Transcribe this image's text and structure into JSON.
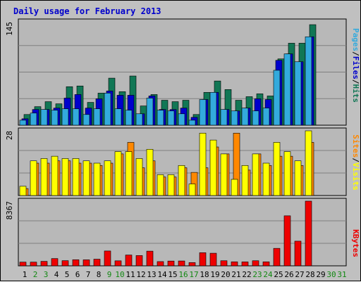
{
  "title": "Daily usage for February 2013",
  "colors": {
    "background": "#c0c0c0",
    "plot_bg": "#b8b8b8",
    "title": "#0000cc",
    "pages": "#33aadd",
    "files": "#0000cc",
    "hits": "#117755",
    "visits": "#ffff00",
    "sites": "#ff8800",
    "kbytes": "#ee0000",
    "weekend_day": "#118811",
    "weekday": "#000000"
  },
  "chart_data": [
    {
      "type": "bar",
      "name": "hits-files-pages",
      "y_max_label": "145",
      "ylim": [
        0,
        145
      ],
      "categories": [
        "1",
        "2",
        "3",
        "4",
        "5",
        "6",
        "7",
        "8",
        "9",
        "10",
        "11",
        "12",
        "13",
        "14",
        "15",
        "16",
        "17",
        "18",
        "19",
        "20",
        "21",
        "22",
        "23",
        "24",
        "25",
        "26",
        "27",
        "28",
        "29",
        "30",
        "31"
      ],
      "series": [
        {
          "name": "Pages",
          "color_key": "pages",
          "values": [
            7,
            17,
            22,
            21,
            23,
            23,
            15,
            23,
            45,
            23,
            21,
            16,
            38,
            21,
            20,
            16,
            7,
            36,
            46,
            22,
            20,
            24,
            20,
            24,
            77,
            100,
            89,
            124,
            0,
            0,
            0
          ]
        },
        {
          "name": "Files",
          "color_key": "files",
          "values": [
            9,
            22,
            22,
            24,
            38,
            43,
            24,
            37,
            48,
            42,
            42,
            16,
            41,
            22,
            22,
            24,
            11,
            36,
            46,
            22,
            20,
            24,
            37,
            36,
            91,
            100,
            89,
            124,
            0,
            0,
            0
          ]
        },
        {
          "name": "Hits",
          "color_key": "hits",
          "values": [
            15,
            26,
            33,
            30,
            54,
            55,
            32,
            45,
            66,
            47,
            69,
            27,
            43,
            35,
            33,
            35,
            15,
            46,
            62,
            50,
            35,
            40,
            44,
            41,
            93,
            115,
            115,
            141,
            0,
            0,
            0
          ]
        }
      ],
      "legend": [
        "Pages",
        "Files",
        "Hits"
      ]
    },
    {
      "type": "bar",
      "name": "visits-sites",
      "y_max_label": "28",
      "ylim": [
        0,
        28
      ],
      "categories": [
        "1",
        "2",
        "3",
        "4",
        "5",
        "6",
        "7",
        "8",
        "9",
        "10",
        "11",
        "12",
        "13",
        "14",
        "15",
        "16",
        "17",
        "18",
        "19",
        "20",
        "21",
        "22",
        "23",
        "24",
        "25",
        "26",
        "27",
        "28",
        "29",
        "30",
        "31"
      ],
      "series": [
        {
          "name": "Visits",
          "color_key": "visits",
          "values": [
            4,
            15,
            16,
            17,
            16,
            16,
            15,
            14,
            15,
            19,
            19,
            16,
            20,
            9,
            9,
            13,
            5,
            27,
            24,
            18,
            7,
            13,
            18,
            14,
            23,
            19,
            15,
            28,
            0,
            0,
            0
          ]
        },
        {
          "name": "Sites",
          "color_key": "sites",
          "values": [
            3,
            14,
            14,
            15,
            15,
            14,
            14,
            13,
            14,
            18,
            23,
            12,
            15,
            8,
            8,
            12,
            10,
            12,
            21,
            18,
            27,
            11,
            18,
            13,
            17,
            17,
            13,
            23,
            0,
            0,
            0
          ]
        }
      ],
      "legend": [
        "Sites",
        "Visits"
      ]
    },
    {
      "type": "bar",
      "name": "kbytes",
      "y_max_label": "8367",
      "ylim": [
        0,
        8367
      ],
      "categories": [
        "1",
        "2",
        "3",
        "4",
        "5",
        "6",
        "7",
        "8",
        "9",
        "10",
        "11",
        "12",
        "13",
        "14",
        "15",
        "16",
        "17",
        "18",
        "19",
        "20",
        "21",
        "22",
        "23",
        "24",
        "25",
        "26",
        "27",
        "28",
        "29",
        "30",
        "31"
      ],
      "series": [
        {
          "name": "KBytes",
          "color_key": "kbytes",
          "values": [
            480,
            480,
            580,
            940,
            670,
            790,
            780,
            860,
            1920,
            650,
            1400,
            1330,
            1900,
            550,
            620,
            630,
            420,
            1700,
            1630,
            660,
            520,
            510,
            660,
            520,
            2260,
            6470,
            3190,
            8367,
            0,
            0,
            0
          ]
        }
      ],
      "legend": [
        "KBytes"
      ]
    }
  ],
  "weekend_days": [
    2,
    3,
    9,
    10,
    16,
    17,
    23,
    24,
    30,
    31
  ]
}
